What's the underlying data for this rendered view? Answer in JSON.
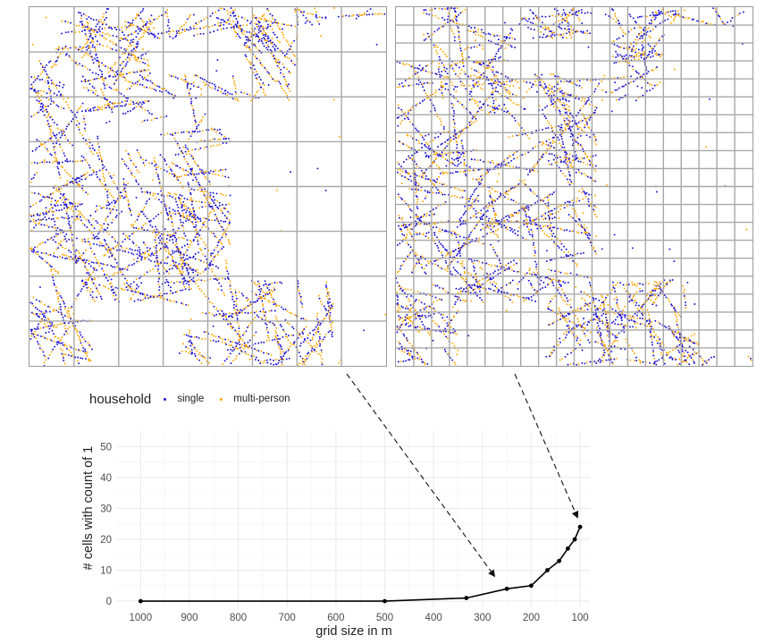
{
  "legend": {
    "title": "household",
    "items": [
      {
        "label": "single",
        "color": "#1a0fd0"
      },
      {
        "label": "multi-person",
        "color": "#ffa500"
      }
    ]
  },
  "maps": [
    {
      "grid_cells_per_side": 8
    },
    {
      "grid_cells_per_side": 20
    }
  ],
  "chart_data": {
    "type": "line",
    "title": "",
    "xlabel": "grid size in m",
    "ylabel": "# cells with count of 1",
    "x_reversed": true,
    "xlim": [
      1050,
      80
    ],
    "ylim": [
      -2,
      55
    ],
    "x_ticks": [
      1000,
      900,
      800,
      700,
      600,
      500,
      400,
      300,
      200,
      100
    ],
    "y_ticks": [
      0,
      10,
      20,
      30,
      40,
      50
    ],
    "grid": true,
    "series": [
      {
        "x": [
          1000,
          500,
          333,
          250,
          200,
          167,
          143,
          125,
          111,
          100
        ],
        "y": [
          0,
          0,
          1,
          4,
          5,
          10,
          13,
          17,
          20,
          24
        ]
      }
    ],
    "annotations": [
      {
        "from_panel": "left",
        "to_x": 275,
        "to_y": 8
      },
      {
        "from_panel": "right",
        "to_x": 105,
        "to_y": 27
      }
    ]
  }
}
